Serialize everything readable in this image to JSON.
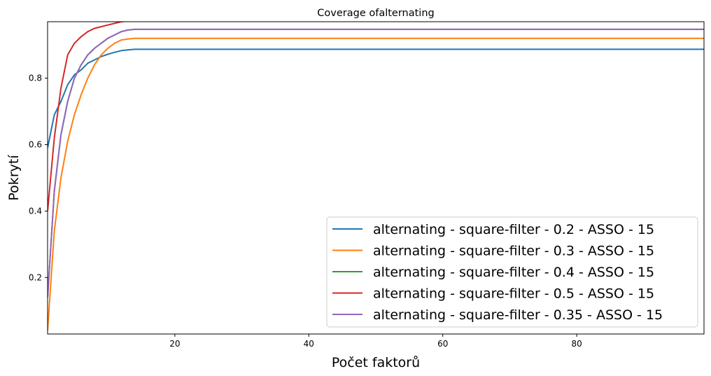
{
  "chart_data": {
    "type": "line",
    "title": "Coverage ofalternating",
    "xlabel": "Počet faktorů",
    "ylabel": "Pokrytí",
    "xlim": [
      1,
      99
    ],
    "ylim": [
      0.03,
      0.97
    ],
    "x_ticks": [
      20,
      40,
      60,
      80
    ],
    "y_ticks": [
      0.2,
      0.4,
      0.6,
      0.8
    ],
    "x_tick_labels": [
      "20",
      "40",
      "60",
      "80"
    ],
    "y_tick_labels": [
      "0.2",
      "0.4",
      "0.6",
      "0.8"
    ],
    "grid": false,
    "legend_position": "lower-right",
    "series": [
      {
        "name": "alternating - square-filter - 0.2 - ASSO - 15",
        "color": "#1f77b4",
        "x": [
          1,
          2,
          3,
          4,
          5,
          6,
          7,
          8,
          9,
          10,
          11,
          12,
          13,
          14,
          99
        ],
        "y": [
          0.59,
          0.69,
          0.73,
          0.78,
          0.81,
          0.825,
          0.845,
          0.855,
          0.865,
          0.872,
          0.878,
          0.883,
          0.885,
          0.887,
          0.887
        ]
      },
      {
        "name": "alternating - square-filter - 0.3 - ASSO - 15",
        "color": "#ff7f0e",
        "x": [
          1,
          2,
          3,
          4,
          5,
          6,
          7,
          8,
          9,
          10,
          11,
          12,
          13,
          14,
          99
        ],
        "y": [
          0.04,
          0.34,
          0.5,
          0.61,
          0.69,
          0.75,
          0.8,
          0.84,
          0.87,
          0.89,
          0.905,
          0.915,
          0.918,
          0.92,
          0.92
        ]
      },
      {
        "name": "alternating - square-filter - 0.4 - ASSO - 15",
        "color": "#2ca02c",
        "x": [
          1,
          2,
          3,
          4,
          5,
          6,
          7,
          8,
          9,
          10,
          11,
          12,
          13,
          14,
          99
        ],
        "y": [
          0.14,
          0.46,
          0.63,
          0.73,
          0.8,
          0.84,
          0.87,
          0.89,
          0.905,
          0.92,
          0.93,
          0.94,
          0.945,
          0.947,
          0.947
        ]
      },
      {
        "name": "alternating - square-filter - 0.5 - ASSO - 15",
        "color": "#d62728",
        "x": [
          1,
          2,
          3,
          4,
          5,
          6,
          7,
          8,
          9,
          10,
          11,
          12,
          13,
          14,
          99
        ],
        "y": [
          0.4,
          0.62,
          0.77,
          0.87,
          0.905,
          0.925,
          0.94,
          0.95,
          0.955,
          0.96,
          0.965,
          0.97,
          0.972,
          0.975,
          0.975
        ]
      },
      {
        "name": "alternating - square-filter - 0.35 - ASSO - 15",
        "color": "#9467bd",
        "x": [
          1,
          2,
          3,
          4,
          5,
          6,
          7,
          8,
          9,
          10,
          11,
          12,
          13,
          14,
          99
        ],
        "y": [
          0.14,
          0.46,
          0.63,
          0.73,
          0.8,
          0.84,
          0.87,
          0.89,
          0.905,
          0.92,
          0.93,
          0.94,
          0.945,
          0.947,
          0.947
        ]
      }
    ]
  }
}
